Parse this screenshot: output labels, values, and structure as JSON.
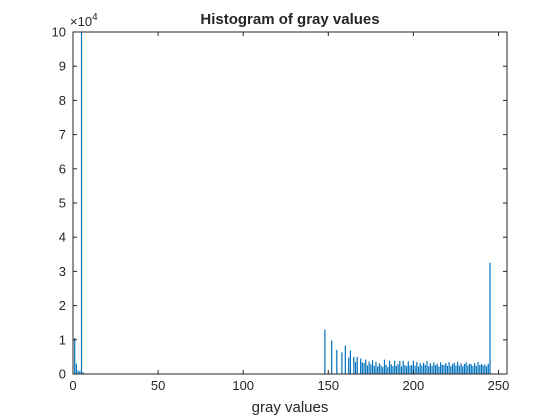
{
  "chart_data": {
    "type": "bar",
    "title": "Histogram of gray values",
    "xlabel": "gray values",
    "ylabel": "",
    "y_exponent_label": "×10",
    "y_exponent_power": "4",
    "xlim": [
      0,
      255
    ],
    "ylim": [
      0,
      100000
    ],
    "xticks": [
      "0",
      "50",
      "100",
      "150",
      "200",
      "250"
    ],
    "xtick_values": [
      0,
      50,
      100,
      150,
      200,
      250
    ],
    "yticks": [
      "0",
      "1",
      "2",
      "3",
      "4",
      "5",
      "6",
      "7",
      "8",
      "9",
      "10"
    ],
    "ytick_values": [
      0,
      10000,
      20000,
      30000,
      40000,
      50000,
      60000,
      70000,
      80000,
      90000,
      100000
    ],
    "grid": false,
    "bar_color": "#0072BD",
    "x": [
      1,
      2,
      3,
      4,
      5,
      6,
      148,
      152,
      155,
      158,
      160,
      162,
      163,
      165,
      166,
      167,
      169,
      170,
      171,
      172,
      173,
      174,
      175,
      176,
      177,
      178,
      179,
      180,
      181,
      182,
      183,
      184,
      185,
      186,
      187,
      188,
      189,
      190,
      191,
      192,
      193,
      194,
      195,
      196,
      197,
      198,
      199,
      200,
      201,
      202,
      203,
      204,
      205,
      206,
      207,
      208,
      209,
      210,
      211,
      212,
      213,
      214,
      215,
      216,
      217,
      218,
      219,
      220,
      221,
      222,
      223,
      224,
      225,
      226,
      227,
      228,
      229,
      230,
      231,
      232,
      233,
      234,
      235,
      236,
      237,
      238,
      239,
      240,
      241,
      242,
      243,
      244,
      245
    ],
    "values": [
      10500,
      3000,
      1000,
      800,
      100000,
      500,
      13000,
      9800,
      7000,
      6300,
      8300,
      4800,
      6900,
      5000,
      3500,
      5000,
      4500,
      3400,
      3200,
      4200,
      2500,
      3600,
      2800,
      4000,
      2400,
      3500,
      2200,
      3100,
      2500,
      2000,
      4200,
      2700,
      2000,
      3900,
      2800,
      2300,
      3900,
      2400,
      2900,
      3800,
      2200,
      3900,
      2600,
      2300,
      3700,
      2400,
      2600,
      3900,
      2400,
      3500,
      2200,
      3200,
      2500,
      3300,
      2600,
      3800,
      2300,
      3200,
      2400,
      3400,
      2600,
      3000,
      2200,
      3400,
      2700,
      2600,
      3200,
      2400,
      3500,
      2300,
      2900,
      3300,
      2500,
      3600,
      2400,
      3100,
      2300,
      2900,
      3400,
      2500,
      3000,
      2800,
      2300,
      3200,
      2400,
      3500,
      2600,
      2900,
      2500,
      2800,
      2300,
      3000,
      32500
    ]
  }
}
